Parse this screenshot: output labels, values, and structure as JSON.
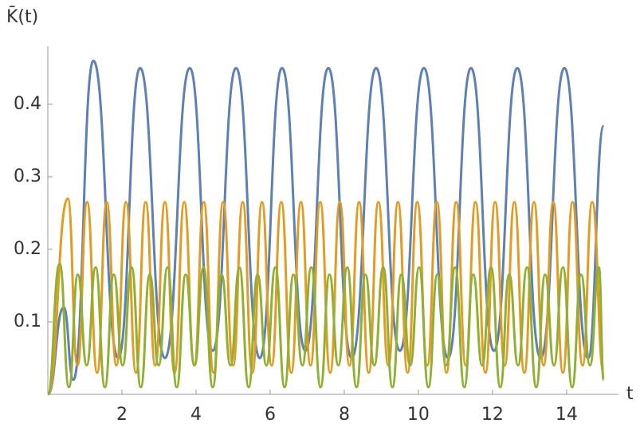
{
  "chart_data": {
    "type": "line",
    "x_label": "t",
    "y_label": "K̄(t)",
    "xlim": [
      0,
      15.4
    ],
    "ylim": [
      0,
      0.48
    ],
    "xticks": [
      2,
      4,
      6,
      8,
      10,
      12,
      14
    ],
    "yticks": [
      0.1,
      0.2,
      0.3,
      0.4
    ],
    "series": [
      {
        "color": "#5e81b5",
        "x": [
          0,
          0.43,
          0.69,
          1.23,
          1.9,
          2.49,
          3.16,
          3.83,
          4.45,
          5.08,
          5.72,
          6.32,
          6.95,
          7.57,
          8.2,
          8.86,
          9.5,
          10.15,
          10.8,
          11.42,
          12.04,
          12.67,
          13.3,
          13.94,
          14.58,
          15.0
        ],
        "values": [
          0,
          0.12,
          0.02,
          0.46,
          0.05,
          0.45,
          0.05,
          0.45,
          0.06,
          0.45,
          0.05,
          0.45,
          0.06,
          0.45,
          0.05,
          0.45,
          0.06,
          0.45,
          0.05,
          0.45,
          0.06,
          0.45,
          0.05,
          0.45,
          0.05,
          0.37
        ]
      },
      {
        "color": "#e19c24",
        "x": [
          0,
          0.54,
          0.8,
          1.06,
          1.33,
          1.59,
          1.85,
          2.11,
          2.38,
          2.64,
          2.9,
          3.16,
          3.42,
          3.68,
          3.95,
          4.21,
          4.47,
          4.73,
          5.0,
          5.26,
          5.52,
          5.78,
          6.04,
          6.3,
          6.57,
          6.83,
          7.09,
          7.35,
          7.62,
          7.88,
          8.14,
          8.4,
          8.66,
          8.92,
          9.19,
          9.45,
          9.71,
          9.97,
          10.24,
          10.5,
          10.76,
          11.02,
          11.28,
          11.54,
          11.81,
          12.07,
          12.33,
          12.59,
          12.86,
          13.12,
          13.38,
          13.64,
          13.9,
          14.16,
          14.43,
          14.69,
          15.0
        ],
        "values": [
          0,
          0.27,
          0.04,
          0.265,
          0.03,
          0.265,
          0.04,
          0.265,
          0.03,
          0.265,
          0.04,
          0.265,
          0.03,
          0.265,
          0.04,
          0.265,
          0.03,
          0.265,
          0.04,
          0.265,
          0.03,
          0.265,
          0.04,
          0.265,
          0.03,
          0.265,
          0.04,
          0.265,
          0.03,
          0.265,
          0.04,
          0.265,
          0.03,
          0.265,
          0.04,
          0.265,
          0.03,
          0.265,
          0.04,
          0.265,
          0.03,
          0.265,
          0.04,
          0.265,
          0.03,
          0.265,
          0.04,
          0.265,
          0.03,
          0.265,
          0.04,
          0.265,
          0.03,
          0.265,
          0.04,
          0.265,
          0.03
        ]
      },
      {
        "color": "#8fb032",
        "x": [
          0,
          0.32,
          0.57,
          0.81,
          1.05,
          1.29,
          1.54,
          1.78,
          2.02,
          2.26,
          2.51,
          2.75,
          2.99,
          3.23,
          3.48,
          3.72,
          3.96,
          4.2,
          4.45,
          4.69,
          4.93,
          5.17,
          5.42,
          5.66,
          5.9,
          6.14,
          6.39,
          6.63,
          6.87,
          7.11,
          7.36,
          7.6,
          7.84,
          8.08,
          8.33,
          8.57,
          8.81,
          9.05,
          9.3,
          9.54,
          9.78,
          10.02,
          10.27,
          10.51,
          10.75,
          10.99,
          11.24,
          11.48,
          11.72,
          11.96,
          12.21,
          12.45,
          12.69,
          12.93,
          13.18,
          13.42,
          13.66,
          13.9,
          14.15,
          14.39,
          14.63,
          14.87,
          15.0
        ],
        "values": [
          0,
          0.18,
          0.01,
          0.165,
          0.04,
          0.175,
          0.01,
          0.165,
          0.04,
          0.175,
          0.01,
          0.165,
          0.04,
          0.175,
          0.01,
          0.165,
          0.04,
          0.175,
          0.01,
          0.165,
          0.04,
          0.175,
          0.01,
          0.165,
          0.04,
          0.175,
          0.01,
          0.165,
          0.04,
          0.175,
          0.01,
          0.165,
          0.04,
          0.175,
          0.01,
          0.165,
          0.04,
          0.175,
          0.01,
          0.165,
          0.04,
          0.175,
          0.01,
          0.165,
          0.04,
          0.175,
          0.01,
          0.165,
          0.04,
          0.175,
          0.01,
          0.165,
          0.04,
          0.175,
          0.01,
          0.165,
          0.04,
          0.175,
          0.01,
          0.165,
          0.04,
          0.175,
          0.02
        ]
      }
    ]
  }
}
